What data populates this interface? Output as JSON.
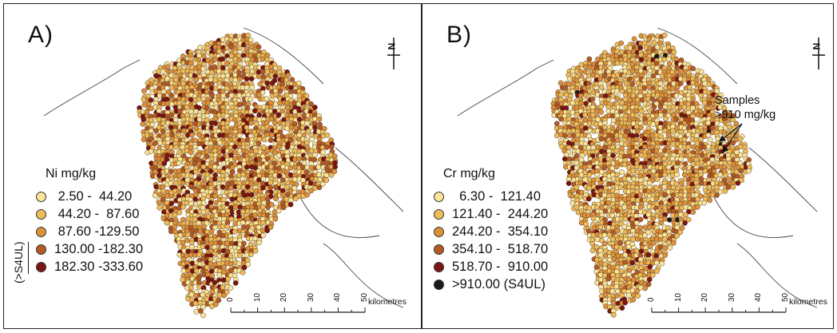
{
  "panels": [
    {
      "label": "A)",
      "legend_title": "Ni mg/kg",
      "classes": [
        {
          "range": " 2.50 -  44.20",
          "color": "#fbe59a"
        },
        {
          "range": " 44.20 -  87.60",
          "color": "#efbc5a"
        },
        {
          "range": " 87.60 -129.50",
          "color": "#de913a"
        },
        {
          "range": "130.00 -182.30",
          "color": "#b45a24"
        },
        {
          "range": "182.30 -333.60",
          "color": "#7a1510"
        }
      ],
      "s4ul_label": "(>S4UL)"
    },
    {
      "label": "B)",
      "legend_title": "Cr mg/kg",
      "classes": [
        {
          "range": "  6.30 -  121.40",
          "color": "#fbe59a"
        },
        {
          "range": "121.40 -  244.20",
          "color": "#efbc5a"
        },
        {
          "range": "244.20 -  354.10",
          "color": "#de913a"
        },
        {
          "range": "354.10 -  518.70",
          "color": "#b45a24"
        },
        {
          "range": "518.70 -  910.00",
          "color": "#7a1510"
        },
        {
          "range": ">910.00 (S4UL)",
          "color": "#1a1a1a"
        }
      ],
      "annotation_line1": "Samples",
      "annotation_line2": ">910 mg/kg"
    }
  ],
  "north_label": "N",
  "scale": {
    "ticks": [
      "0",
      "10",
      "20",
      "30",
      "40",
      "50"
    ],
    "unit": "kilometres"
  }
}
